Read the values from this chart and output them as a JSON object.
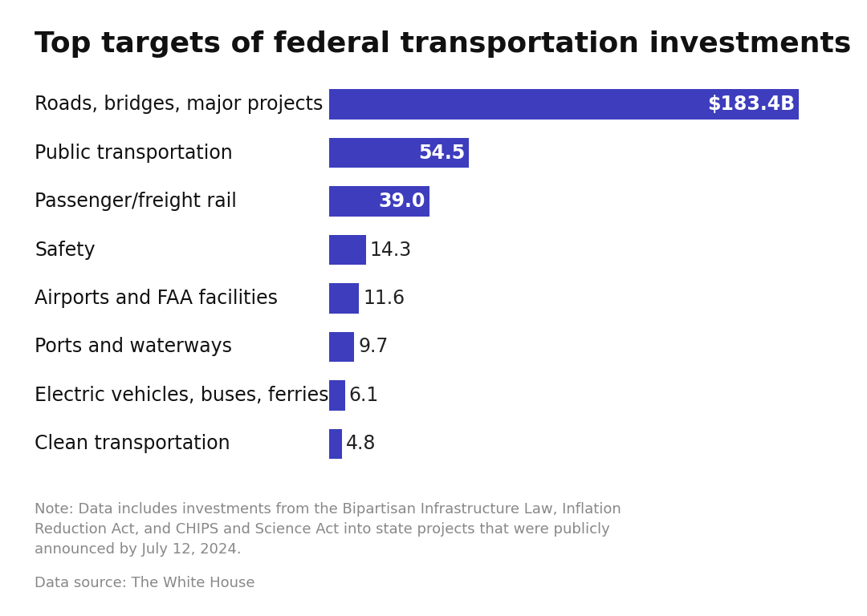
{
  "title": "Top targets of federal transportation investments",
  "categories": [
    "Roads, bridges, major projects",
    "Public transportation",
    "Passenger/freight rail",
    "Safety",
    "Airports and FAA facilities",
    "Ports and waterways",
    "Electric vehicles, buses, ferries",
    "Clean transportation"
  ],
  "values": [
    183.4,
    54.5,
    39.0,
    14.3,
    11.6,
    9.7,
    6.1,
    4.8
  ],
  "labels": [
    "$183.4B",
    "54.5",
    "39.0",
    "14.3",
    "11.6",
    "9.7",
    "6.1",
    "4.8"
  ],
  "bar_color": "#3d3dbe",
  "label_color_inside": "#ffffff",
  "label_color_outside": "#222222",
  "inside_threshold": 39.0,
  "background_color": "#ffffff",
  "title_fontsize": 26,
  "title_fontweight": "bold",
  "category_fontsize": 17,
  "label_fontsize": 17,
  "note_text": "Note: Data includes investments from the Bipartisan Infrastructure Law, Inflation\nReduction Act, and CHIPS and Science Act into state projects that were publicly\nannounced by July 12, 2024.",
  "source_text": "Data source: The White House",
  "note_fontsize": 13,
  "xlim": [
    0,
    200
  ]
}
